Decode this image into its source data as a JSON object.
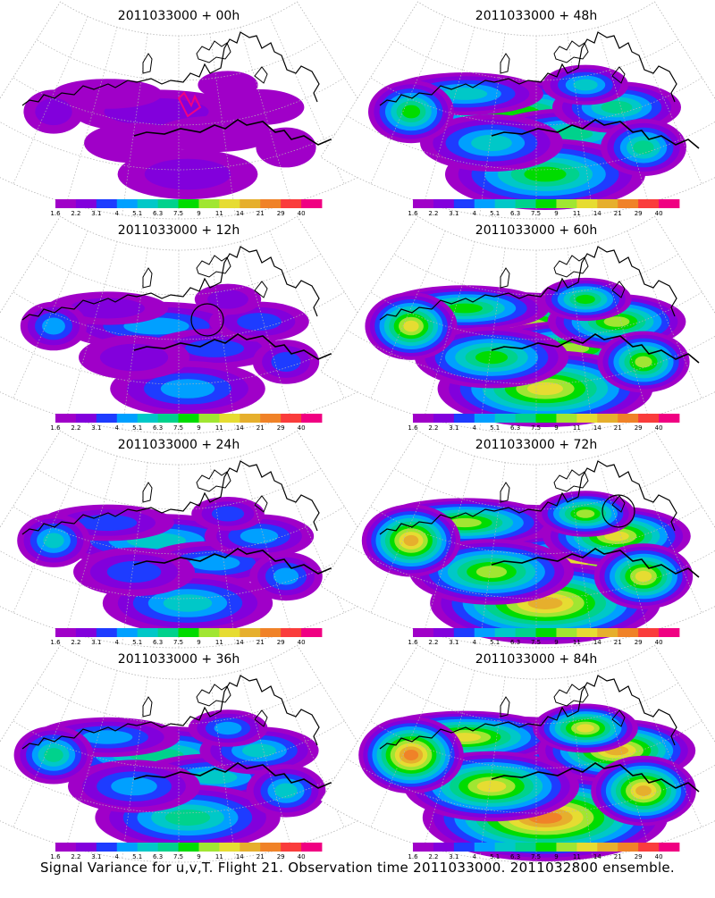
{
  "caption": "Signal Variance for u,v,T. Flight 21. Observation time 2011033000. 2011032800 ensemble.",
  "colorbar": {
    "labels": [
      "1.6",
      "2.2",
      "3.1",
      "4",
      "5.1",
      "6.3",
      "7.5",
      "9",
      "11",
      "14",
      "21",
      "29",
      "40"
    ],
    "colors": [
      "#a000c8",
      "#8200dc",
      "#1e3cff",
      "#00a0ff",
      "#00c8c8",
      "#00d28c",
      "#00dc00",
      "#a0e632",
      "#e6dc32",
      "#e6af2d",
      "#f08228",
      "#fa3c3c",
      "#f00082"
    ]
  },
  "map": {
    "coast_color": "#000000",
    "grid_color": "#b4b4b4"
  },
  "panels": [
    {
      "title": "2011033000 + 00h",
      "level": 1,
      "marker": "trace"
    },
    {
      "title": "2011033000 + 12h",
      "level": 2,
      "marker": "circle"
    },
    {
      "title": "2011033000 + 24h",
      "level": 3,
      "marker": ""
    },
    {
      "title": "2011033000 + 36h",
      "level": 4,
      "marker": ""
    },
    {
      "title": "2011033000 + 48h",
      "level": 5,
      "marker": ""
    },
    {
      "title": "2011033000 + 60h",
      "level": 6,
      "marker": ""
    },
    {
      "title": "2011033000 + 72h",
      "level": 7,
      "marker": "circle"
    },
    {
      "title": "2011033000 + 84h",
      "level": 8,
      "marker": ""
    }
  ]
}
